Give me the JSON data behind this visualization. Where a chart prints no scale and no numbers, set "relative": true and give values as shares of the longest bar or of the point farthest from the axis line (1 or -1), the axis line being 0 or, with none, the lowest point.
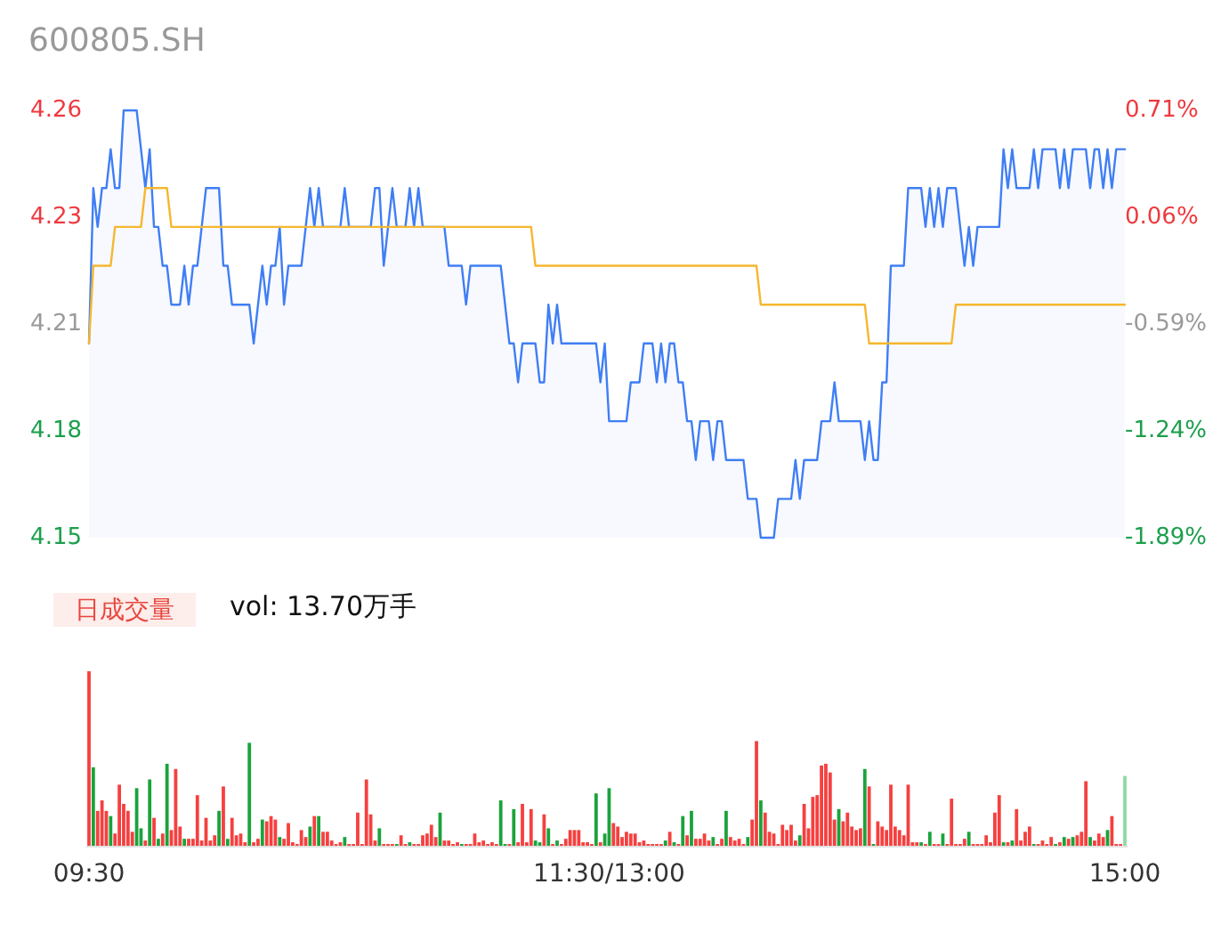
{
  "chart_data": [
    {
      "type": "line",
      "title": "600805.SH",
      "tick_labels": "y",
      "marker": "none",
      "categories": [
        null,
        null,
        null,
        null,
        null,
        null,
        null,
        null,
        null,
        null,
        null,
        null,
        null,
        null,
        null,
        null,
        null,
        null,
        null,
        null,
        null,
        null,
        null,
        null,
        null,
        null,
        null,
        null,
        null,
        null,
        null,
        null,
        null,
        null,
        null,
        null,
        null,
        null,
        null,
        null,
        null,
        null,
        null,
        null,
        null,
        null,
        null,
        null,
        null,
        null,
        null,
        null,
        null,
        null,
        null,
        null,
        null,
        null,
        null,
        null,
        null,
        null,
        null,
        null,
        null,
        null,
        null,
        null,
        null,
        null,
        null,
        null,
        null,
        null,
        null,
        null,
        null,
        null,
        null,
        null,
        null,
        null,
        null,
        null,
        null,
        null,
        null,
        null,
        null,
        null,
        null,
        null,
        null,
        null,
        null,
        null,
        null,
        null,
        null,
        null,
        null,
        null,
        null,
        null,
        null,
        null,
        null,
        null,
        null,
        null,
        null,
        null,
        null,
        null,
        null,
        null,
        null,
        null,
        null,
        null,
        null,
        null,
        null,
        null,
        null,
        null,
        null,
        null,
        null,
        null,
        null,
        null,
        null,
        null,
        null,
        null,
        null,
        null,
        null,
        null,
        null,
        null,
        null,
        null,
        null,
        null,
        null,
        null,
        null,
        null,
        null,
        null,
        null,
        null,
        null,
        null,
        null,
        null,
        null,
        null,
        null,
        null,
        null,
        null,
        null,
        null,
        null,
        null,
        null,
        null,
        null,
        null,
        null,
        null,
        null,
        null,
        null,
        null,
        null,
        null,
        null,
        null,
        null,
        null,
        null,
        null,
        null,
        null,
        null,
        null,
        null,
        null,
        null,
        null,
        null,
        null,
        null,
        null,
        null,
        null,
        null,
        null,
        null,
        null,
        null,
        null,
        null,
        null,
        null,
        null,
        null,
        null,
        null,
        null,
        null,
        null,
        null,
        null,
        null,
        null,
        null,
        null,
        null,
        null,
        null,
        null,
        null,
        null,
        null,
        null,
        null,
        null,
        null,
        null,
        null,
        null,
        null,
        null,
        null,
        null
      ],
      "ylim": [
        4.15,
        4.26
      ],
      "yticks": [
        4.15,
        {
          "value": 4.1775,
          "label": "4.18"
        },
        {
          "value": 4.205,
          "label": "4.21"
        },
        {
          "value": 4.2325,
          "label": "4.23"
        },
        4.26
      ],
      "y2lim": [
        -1.89,
        0.71
      ],
      "y2ticks": [
        {
          "value": -1.89,
          "label": "-1.89%"
        },
        {
          "value": -1.24,
          "label": "-1.24%"
        },
        {
          "value": -0.59,
          "label": "-0.59%"
        },
        {
          "value": 0.06,
          "label": "0.06%"
        },
        {
          "value": 0.71,
          "label": "0.71%"
        }
      ],
      "series": [
        {
          "type": "area",
          "color": "#3f7ef5",
          "values": [
            4.2,
            4.24,
            4.23,
            4.24,
            4.24,
            4.25,
            4.24,
            4.24,
            4.26,
            4.26,
            4.26,
            4.26,
            4.25,
            4.24,
            4.25,
            4.23,
            4.23,
            4.22,
            4.22,
            4.21,
            4.21,
            4.21,
            4.22,
            4.21,
            4.22,
            4.22,
            4.23,
            4.24,
            4.24,
            4.24,
            4.24,
            4.22,
            4.22,
            4.21,
            4.21,
            4.21,
            4.21,
            4.21,
            4.2,
            4.21,
            4.22,
            4.21,
            4.22,
            4.22,
            4.23,
            4.21,
            4.22,
            4.22,
            4.22,
            4.22,
            4.23,
            4.24,
            4.23,
            4.24,
            4.23,
            4.23,
            4.23,
            4.23,
            4.23,
            4.24,
            4.23,
            4.23,
            4.23,
            4.23,
            4.23,
            4.23,
            4.24,
            4.24,
            4.22,
            4.23,
            4.24,
            4.23,
            4.23,
            4.23,
            4.24,
            4.23,
            4.24,
            4.23,
            4.23,
            4.23,
            4.23,
            4.23,
            4.23,
            4.22,
            4.22,
            4.22,
            4.22,
            4.21,
            4.22,
            4.22,
            4.22,
            4.22,
            4.22,
            4.22,
            4.22,
            4.22,
            4.21,
            4.2,
            4.2,
            4.19,
            4.2,
            4.2,
            4.2,
            4.2,
            4.19,
            4.19,
            4.21,
            4.2,
            4.21,
            4.2,
            4.2,
            4.2,
            4.2,
            4.2,
            4.2,
            4.2,
            4.2,
            4.2,
            4.19,
            4.2,
            4.18,
            4.18,
            4.18,
            4.18,
            4.18,
            4.19,
            4.19,
            4.19,
            4.2,
            4.2,
            4.2,
            4.19,
            4.2,
            4.19,
            4.2,
            4.2,
            4.19,
            4.19,
            4.18,
            4.18,
            4.17,
            4.18,
            4.18,
            4.18,
            4.17,
            4.18,
            4.18,
            4.17,
            4.17,
            4.17,
            4.17,
            4.17,
            4.16,
            4.16,
            4.16,
            4.15,
            4.15,
            4.15,
            4.15,
            4.16,
            4.16,
            4.16,
            4.16,
            4.17,
            4.16,
            4.17,
            4.17,
            4.17,
            4.17,
            4.18,
            4.18,
            4.18,
            4.19,
            4.18,
            4.18,
            4.18,
            4.18,
            4.18,
            4.18,
            4.17,
            4.18,
            4.17,
            4.17,
            4.19,
            4.19,
            4.22,
            4.22,
            4.22,
            4.22,
            4.24,
            4.24,
            4.24,
            4.24,
            4.23,
            4.24,
            4.23,
            4.24,
            4.23,
            4.24,
            4.24,
            4.24,
            4.23,
            4.22,
            4.23,
            4.22,
            4.23,
            4.23,
            4.23,
            4.23,
            4.23,
            4.23,
            4.25,
            4.24,
            4.25,
            4.24,
            4.24,
            4.24,
            4.24,
            4.25,
            4.24,
            4.25,
            4.25,
            4.25,
            4.25,
            4.24,
            4.25,
            4.24,
            4.25,
            4.25,
            4.25,
            4.25,
            4.24,
            4.25,
            4.25,
            4.24,
            4.25,
            4.24,
            4.25,
            4.25,
            4.25
          ]
        },
        {
          "type": "line",
          "color": "#f5b72f",
          "values": [
            4.2,
            4.22,
            4.22,
            4.22,
            4.22,
            4.22,
            4.23,
            4.23,
            4.23,
            4.23,
            4.23,
            4.23,
            4.23,
            4.24,
            4.24,
            4.24,
            4.24,
            4.24,
            4.24,
            4.23,
            4.23,
            4.23,
            4.23,
            4.23,
            4.23,
            4.23,
            4.23,
            4.23,
            4.23,
            4.23,
            4.23,
            4.23,
            4.23,
            4.23,
            4.23,
            4.23,
            4.23,
            4.23,
            4.23,
            4.23,
            4.23,
            4.23,
            4.23,
            4.23,
            4.23,
            4.23,
            4.23,
            4.23,
            4.23,
            4.23,
            4.23,
            4.23,
            4.23,
            4.23,
            4.23,
            4.23,
            4.23,
            4.23,
            4.23,
            4.23,
            4.23,
            4.23,
            4.23,
            4.23,
            4.23,
            4.23,
            4.23,
            4.23,
            4.23,
            4.23,
            4.23,
            4.23,
            4.23,
            4.23,
            4.23,
            4.23,
            4.23,
            4.23,
            4.23,
            4.23,
            4.23,
            4.23,
            4.23,
            4.23,
            4.23,
            4.23,
            4.23,
            4.23,
            4.23,
            4.23,
            4.23,
            4.23,
            4.23,
            4.23,
            4.23,
            4.23,
            4.23,
            4.23,
            4.23,
            4.23,
            4.23,
            4.23,
            4.23,
            4.22,
            4.22,
            4.22,
            4.22,
            4.22,
            4.22,
            4.22,
            4.22,
            4.22,
            4.22,
            4.22,
            4.22,
            4.22,
            4.22,
            4.22,
            4.22,
            4.22,
            4.22,
            4.22,
            4.22,
            4.22,
            4.22,
            4.22,
            4.22,
            4.22,
            4.22,
            4.22,
            4.22,
            4.22,
            4.22,
            4.22,
            4.22,
            4.22,
            4.22,
            4.22,
            4.22,
            4.22,
            4.22,
            4.22,
            4.22,
            4.22,
            4.22,
            4.22,
            4.22,
            4.22,
            4.22,
            4.22,
            4.22,
            4.22,
            4.22,
            4.22,
            4.22,
            4.21,
            4.21,
            4.21,
            4.21,
            4.21,
            4.21,
            4.21,
            4.21,
            4.21,
            4.21,
            4.21,
            4.21,
            4.21,
            4.21,
            4.21,
            4.21,
            4.21,
            4.21,
            4.21,
            4.21,
            4.21,
            4.21,
            4.21,
            4.21,
            4.21,
            4.2,
            4.2,
            4.2,
            4.2,
            4.2,
            4.2,
            4.2,
            4.2,
            4.2,
            4.2,
            4.2,
            4.2,
            4.2,
            4.2,
            4.2,
            4.2,
            4.2,
            4.2,
            4.2,
            4.2,
            4.21,
            4.21,
            4.21,
            4.21,
            4.21,
            4.21,
            4.21,
            4.21,
            4.21,
            4.21,
            4.21,
            4.21,
            4.21,
            4.21,
            4.21,
            4.21,
            4.21,
            4.21,
            4.21,
            4.21,
            4.21,
            4.21,
            4.21,
            4.21,
            4.21,
            4.21,
            4.21,
            4.21,
            4.21,
            4.21,
            4.21,
            4.21,
            4.21,
            4.21,
            4.21,
            4.21,
            4.21,
            4.21,
            4.21,
            4.21
          ]
        }
      ]
    },
    {
      "type": "bar",
      "title": "日成交量",
      "annotations": [
        "vol: 13.70万手"
      ],
      "relative": true,
      "categories": [
        "09:30",
        null,
        null,
        null,
        null,
        null,
        null,
        null,
        null,
        null,
        null,
        null,
        null,
        null,
        null,
        null,
        null,
        null,
        null,
        null,
        null,
        null,
        null,
        null,
        null,
        null,
        null,
        null,
        null,
        null,
        null,
        null,
        null,
        null,
        null,
        null,
        null,
        null,
        null,
        null,
        null,
        null,
        null,
        null,
        null,
        null,
        null,
        null,
        null,
        null,
        null,
        null,
        null,
        null,
        null,
        null,
        null,
        null,
        null,
        null,
        null,
        null,
        null,
        null,
        null,
        null,
        null,
        null,
        null,
        null,
        null,
        null,
        null,
        null,
        null,
        null,
        null,
        null,
        null,
        null,
        null,
        null,
        null,
        null,
        null,
        null,
        null,
        null,
        null,
        null,
        null,
        null,
        null,
        null,
        null,
        null,
        null,
        null,
        null,
        null,
        null,
        null,
        null,
        null,
        null,
        null,
        null,
        null,
        null,
        null,
        null,
        null,
        null,
        null,
        null,
        null,
        null,
        null,
        null,
        null,
        "11:30/13:00",
        null,
        null,
        null,
        null,
        null,
        null,
        null,
        null,
        null,
        null,
        null,
        null,
        null,
        null,
        null,
        null,
        null,
        null,
        null,
        null,
        null,
        null,
        null,
        null,
        null,
        null,
        null,
        null,
        null,
        null,
        null,
        null,
        null,
        null,
        null,
        null,
        null,
        null,
        null,
        null,
        null,
        null,
        null,
        null,
        null,
        null,
        null,
        null,
        null,
        null,
        null,
        null,
        null,
        null,
        null,
        null,
        null,
        null,
        null,
        null,
        null,
        null,
        null,
        null,
        null,
        null,
        null,
        null,
        null,
        null,
        null,
        null,
        null,
        null,
        null,
        null,
        null,
        null,
        null,
        null,
        null,
        null,
        null,
        null,
        null,
        null,
        null,
        null,
        null,
        null,
        null,
        null,
        null,
        null,
        null,
        null,
        null,
        null,
        null,
        null,
        null,
        null,
        null,
        null,
        null,
        null,
        null,
        null,
        null,
        null,
        null,
        null,
        null,
        null,
        null,
        null,
        null,
        null,
        "15:00"
      ],
      "values": [
        1.0,
        0.45,
        0.2,
        0.26,
        0.2,
        0.17,
        0.07,
        0.35,
        0.24,
        0.2,
        0.08,
        0.33,
        0.1,
        0.03,
        0.38,
        0.16,
        0.04,
        0.07,
        0.47,
        0.09,
        0.44,
        0.11,
        0.04,
        0.04,
        0.04,
        0.29,
        0.03,
        0.16,
        0.03,
        0.06,
        0.2,
        0.34,
        0.04,
        0.16,
        0.06,
        0.07,
        0.02,
        0.59,
        0.02,
        0.04,
        0.15,
        0.14,
        0.17,
        0.15,
        0.05,
        0.04,
        0.13,
        0.02,
        0.01,
        0.09,
        0.05,
        0.11,
        0.17,
        0.17,
        0.08,
        0.08,
        0.03,
        0.01,
        0.02,
        0.05,
        0.01,
        0.01,
        0.19,
        0.01,
        0.38,
        0.18,
        0.03,
        0.1,
        0.01,
        0.01,
        0.01,
        0.01,
        0.06,
        0.01,
        0.02,
        0.01,
        0.01,
        0.06,
        0.07,
        0.12,
        0.05,
        0.19,
        0.03,
        0.03,
        0.01,
        0.02,
        0.01,
        0.01,
        0.01,
        0.07,
        0.02,
        0.03,
        0.01,
        0.02,
        0.01,
        0.26,
        0.01,
        0.01,
        0.21,
        0.02,
        0.24,
        0.02,
        0.21,
        0.03,
        0.02,
        0.18,
        0.1,
        0.01,
        0.03,
        0.01,
        0.04,
        0.09,
        0.09,
        0.09,
        0.02,
        0.02,
        0.01,
        0.3,
        0.02,
        0.07,
        0.33,
        0.13,
        0.11,
        0.05,
        0.08,
        0.07,
        0.07,
        0.02,
        0.03,
        0.01,
        0.01,
        0.01,
        0.01,
        0.03,
        0.08,
        0.02,
        0.01,
        0.17,
        0.06,
        0.2,
        0.04,
        0.04,
        0.07,
        0.03,
        0.05,
        0.01,
        0.04,
        0.2,
        0.05,
        0.03,
        0.04,
        0.01,
        0.05,
        0.15,
        0.6,
        0.26,
        0.19,
        0.08,
        0.07,
        0.01,
        0.12,
        0.09,
        0.12,
        0.03,
        0.06,
        0.24,
        0.1,
        0.28,
        0.29,
        0.46,
        0.47,
        0.42,
        0.15,
        0.21,
        0.14,
        0.19,
        0.11,
        0.09,
        0.1,
        0.44,
        0.34,
        0.01,
        0.14,
        0.11,
        0.09,
        0.35,
        0.11,
        0.09,
        0.06,
        0.35,
        0.02,
        0.02,
        0.02,
        0.01,
        0.08,
        0.01,
        0.01,
        0.07,
        0.01,
        0.27,
        0.01,
        0.01,
        0.04,
        0.08,
        0.01,
        0.01,
        0.01,
        0.06,
        0.02,
        0.19,
        0.29,
        0.02,
        0.02,
        0.03,
        0.21,
        0.03,
        0.08,
        0.11,
        0.01,
        0.01,
        0.03,
        0.01,
        0.05,
        0.01,
        0.02,
        0.05,
        0.04,
        0.05,
        0.06,
        0.08,
        0.37,
        0.05,
        0.03,
        0.07,
        0.05,
        0.09,
        0.17,
        0.01,
        0.01,
        0.4
      ],
      "colors": [
        "#f5403f",
        "#1aa33b",
        "#f5403f",
        "#f5403f",
        "#f5403f",
        "#1aa33b",
        "#f5403f",
        "#f5403f",
        "#f5403f",
        "#f5403f",
        "#f5403f",
        "#1aa33b",
        "#1aa33b",
        "#f5403f",
        "#1aa33b",
        "#f5403f",
        "#1aa33b",
        "#f5403f",
        "#1aa33b",
        "#f5403f",
        "#f5403f",
        "#f5403f",
        "#1aa33b",
        "#f5403f",
        "#f5403f",
        "#f5403f",
        "#f5403f",
        "#f5403f",
        "#f5403f",
        "#f5403f",
        "#1aa33b",
        "#f5403f",
        "#1aa33b",
        "#f5403f",
        "#f5403f",
        "#f5403f",
        "#f5403f",
        "#1aa33b",
        "#f5403f",
        "#f5403f",
        "#1aa33b",
        "#f5403f",
        "#f5403f",
        "#f5403f",
        "#1aa33b",
        "#f5403f",
        "#f5403f",
        "#f5403f",
        "#f5403f",
        "#f5403f",
        "#f5403f",
        "#1aa33b",
        "#f5403f",
        "#1aa33b",
        "#f5403f",
        "#f5403f",
        "#f5403f",
        "#f5403f",
        "#f5403f",
        "#1aa33b",
        "#f5403f",
        "#f5403f",
        "#f5403f",
        "#f5403f",
        "#f5403f",
        "#f5403f",
        "#f5403f",
        "#1aa33b",
        "#f5403f",
        "#f5403f",
        "#f5403f",
        "#1aa33b",
        "#f5403f",
        "#f5403f",
        "#1aa33b",
        "#f5403f",
        "#f5403f",
        "#f5403f",
        "#f5403f",
        "#f5403f",
        "#f5403f",
        "#1aa33b",
        "#f5403f",
        "#f5403f",
        "#f5403f",
        "#f5403f",
        "#1aa33b",
        "#f5403f",
        "#f5403f",
        "#f5403f",
        "#f5403f",
        "#f5403f",
        "#f5403f",
        "#f5403f",
        "#f5403f",
        "#1aa33b",
        "#1aa33b",
        "#f5403f",
        "#1aa33b",
        "#f5403f",
        "#f5403f",
        "#f5403f",
        "#f5403f",
        "#1aa33b",
        "#1aa33b",
        "#f5403f",
        "#1aa33b",
        "#f5403f",
        "#1aa33b",
        "#f5403f",
        "#f5403f",
        "#f5403f",
        "#f5403f",
        "#f5403f",
        "#f5403f",
        "#f5403f",
        "#f5403f",
        "#1aa33b",
        "#f5403f",
        "#1aa33b",
        "#1aa33b",
        "#f5403f",
        "#f5403f",
        "#f5403f",
        "#f5403f",
        "#f5403f",
        "#f5403f",
        "#f5403f",
        "#f5403f",
        "#f5403f",
        "#f5403f",
        "#f5403f",
        "#f5403f",
        "#1aa33b",
        "#f5403f",
        "#1aa33b",
        "#f5403f",
        "#1aa33b",
        "#f5403f",
        "#1aa33b",
        "#f5403f",
        "#f5403f",
        "#f5403f",
        "#f5403f",
        "#1aa33b",
        "#f5403f",
        "#f5403f",
        "#1aa33b",
        "#f5403f",
        "#f5403f",
        "#f5403f",
        "#f5403f",
        "#1aa33b",
        "#f5403f",
        "#f5403f",
        "#1aa33b",
        "#f5403f",
        "#f5403f",
        "#f5403f",
        "#f5403f",
        "#f5403f",
        "#f5403f",
        "#f5403f",
        "#f5403f",
        "#1aa33b",
        "#f5403f",
        "#f5403f",
        "#f5403f",
        "#f5403f",
        "#f5403f",
        "#f5403f",
        "#f5403f",
        "#f5403f",
        "#1aa33b",
        "#f5403f",
        "#f5403f",
        "#f5403f",
        "#f5403f",
        "#f5403f",
        "#1aa33b",
        "#f5403f",
        "#1aa33b",
        "#f5403f",
        "#f5403f",
        "#f5403f",
        "#f5403f",
        "#f5403f",
        "#f5403f",
        "#f5403f",
        "#f5403f",
        "#f5403f",
        "#f5403f",
        "#1aa33b",
        "#f5403f",
        "#1aa33b",
        "#f5403f",
        "#f5403f",
        "#1aa33b",
        "#f5403f",
        "#f5403f",
        "#f5403f",
        "#f5403f",
        "#f5403f",
        "#1aa33b",
        "#f5403f",
        "#f5403f",
        "#f5403f",
        "#f5403f",
        "#f5403f",
        "#f5403f",
        "#f5403f",
        "#1aa33b",
        "#f5403f",
        "#1aa33b",
        "#f5403f",
        "#f5403f",
        "#f5403f",
        "#f5403f",
        "#1aa33b",
        "#f5403f",
        "#f5403f",
        "#f5403f",
        "#f5403f",
        "#1aa33b",
        "#f5403f",
        "#1aa33b",
        "#f5403f",
        "#1aa33b",
        "#f5403f",
        "#f5403f",
        "#f5403f",
        "#1aa33b",
        "#f5403f",
        "#f5403f",
        "#f5403f",
        "#1aa33b",
        "#f5403f",
        "#f5403f",
        "#f5403f",
        "#8fd9a0"
      ]
    }
  ]
}
